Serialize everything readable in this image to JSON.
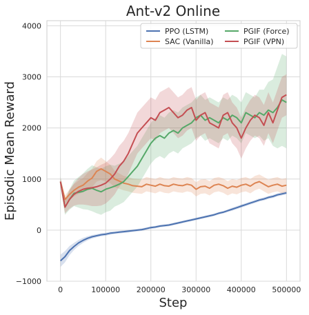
{
  "chart_data": {
    "type": "line",
    "title": "Ant-v2 Online",
    "xlabel": "Step",
    "ylabel": "Episodic Mean Reward",
    "xlim": [
      -30000,
      530000
    ],
    "ylim": [
      -1000,
      4100
    ],
    "xticks": [
      0,
      100000,
      200000,
      300000,
      400000,
      500000
    ],
    "xtick_labels": [
      "0",
      "100000",
      "200000",
      "300000",
      "400000",
      "500000"
    ],
    "yticks": [
      -1000,
      0,
      1000,
      2000,
      3000,
      4000
    ],
    "ytick_labels": [
      "−1000",
      "0",
      "1000",
      "2000",
      "3000",
      "4000"
    ],
    "grid": true,
    "legend_position": "top-right",
    "legend_columns": 2,
    "x": [
      0,
      10000,
      20000,
      30000,
      40000,
      50000,
      60000,
      70000,
      80000,
      90000,
      100000,
      110000,
      120000,
      130000,
      140000,
      150000,
      160000,
      170000,
      180000,
      190000,
      200000,
      210000,
      220000,
      230000,
      240000,
      250000,
      260000,
      270000,
      280000,
      290000,
      300000,
      310000,
      320000,
      330000,
      340000,
      350000,
      360000,
      370000,
      380000,
      390000,
      400000,
      410000,
      420000,
      430000,
      440000,
      450000,
      460000,
      470000,
      480000,
      490000,
      500000
    ],
    "series": [
      {
        "name": "PPO (LSTM)",
        "color": "#4c72b0",
        "values": [
          -600,
          -520,
          -400,
          -320,
          -250,
          -200,
          -160,
          -130,
          -110,
          -90,
          -80,
          -60,
          -50,
          -40,
          -30,
          -20,
          -10,
          0,
          10,
          30,
          50,
          60,
          80,
          90,
          100,
          120,
          140,
          160,
          180,
          200,
          220,
          240,
          260,
          280,
          300,
          330,
          350,
          380,
          410,
          440,
          470,
          500,
          530,
          560,
          590,
          610,
          640,
          660,
          690,
          710,
          730
        ],
        "band": [
          120,
          110,
          90,
          70,
          60,
          50,
          40,
          35,
          30,
          30,
          30,
          30,
          25,
          25,
          25,
          25,
          25,
          25,
          25,
          25,
          25,
          25,
          25,
          25,
          25,
          25,
          25,
          25,
          25,
          25,
          25,
          25,
          25,
          25,
          25,
          25,
          25,
          25,
          30,
          30,
          30,
          30,
          30,
          30,
          30,
          30,
          30,
          30,
          30,
          30,
          30
        ]
      },
      {
        "name": "SAC (Vanilla)",
        "color": "#dd8452",
        "values": [
          950,
          600,
          700,
          780,
          840,
          880,
          960,
          1020,
          1150,
          1200,
          1150,
          1100,
          1000,
          960,
          920,
          900,
          870,
          860,
          850,
          900,
          880,
          860,
          900,
          870,
          860,
          900,
          880,
          870,
          900,
          880,
          800,
          850,
          860,
          820,
          880,
          900,
          870,
          820,
          860,
          840,
          880,
          900,
          860,
          920,
          950,
          900,
          850,
          880,
          900,
          860,
          880
        ],
        "band": [
          60,
          80,
          100,
          120,
          130,
          140,
          160,
          180,
          200,
          220,
          200,
          180,
          160,
          150,
          140,
          140,
          140,
          140,
          140,
          140,
          140,
          140,
          140,
          140,
          140,
          140,
          140,
          140,
          140,
          140,
          140,
          140,
          140,
          140,
          140,
          140,
          140,
          140,
          140,
          140,
          140,
          140,
          140,
          140,
          140,
          140,
          140,
          140,
          140,
          140,
          140
        ]
      },
      {
        "name": "PGIF (Force)",
        "color": "#55a868",
        "values": [
          950,
          450,
          600,
          720,
          740,
          760,
          800,
          820,
          780,
          750,
          800,
          830,
          860,
          900,
          950,
          1050,
          1150,
          1250,
          1400,
          1550,
          1700,
          1800,
          1850,
          1800,
          1900,
          1950,
          1900,
          2000,
          2050,
          2100,
          2200,
          2250,
          2150,
          2200,
          2150,
          2100,
          2200,
          2150,
          2250,
          2200,
          2100,
          2300,
          2250,
          2200,
          2300,
          2250,
          2350,
          2300,
          2400,
          2550,
          2500
        ],
        "band": [
          100,
          150,
          200,
          250,
          300,
          350,
          400,
          450,
          450,
          450,
          450,
          450,
          400,
          400,
          400,
          400,
          400,
          400,
          400,
          400,
          400,
          400,
          400,
          400,
          400,
          400,
          400,
          400,
          400,
          400,
          400,
          400,
          400,
          400,
          400,
          400,
          400,
          400,
          400,
          400,
          400,
          400,
          400,
          400,
          450,
          500,
          550,
          650,
          800,
          900,
          900
        ]
      },
      {
        "name": "PGIF (VPN)",
        "color": "#c44e52",
        "values": [
          950,
          450,
          600,
          700,
          760,
          800,
          820,
          830,
          850,
          880,
          920,
          1000,
          1100,
          1250,
          1350,
          1500,
          1700,
          1900,
          2000,
          2100,
          2200,
          2150,
          2300,
          2350,
          2400,
          2300,
          2200,
          2250,
          2350,
          2400,
          2150,
          2250,
          2300,
          2100,
          2050,
          2000,
          2250,
          2300,
          2100,
          2000,
          1800,
          2000,
          2150,
          2250,
          2200,
          2050,
          2300,
          2100,
          2350,
          2600,
          2650
        ],
        "band": [
          80,
          120,
          180,
          220,
          260,
          300,
          330,
          360,
          380,
          400,
          400,
          400,
          400,
          400,
          400,
          400,
          400,
          400,
          400,
          400,
          400,
          400,
          400,
          400,
          400,
          400,
          400,
          400,
          400,
          400,
          400,
          400,
          400,
          400,
          400,
          400,
          400,
          400,
          400,
          400,
          400,
          400,
          400,
          400,
          400,
          400,
          400,
          400,
          400,
          400,
          400
        ]
      }
    ]
  }
}
